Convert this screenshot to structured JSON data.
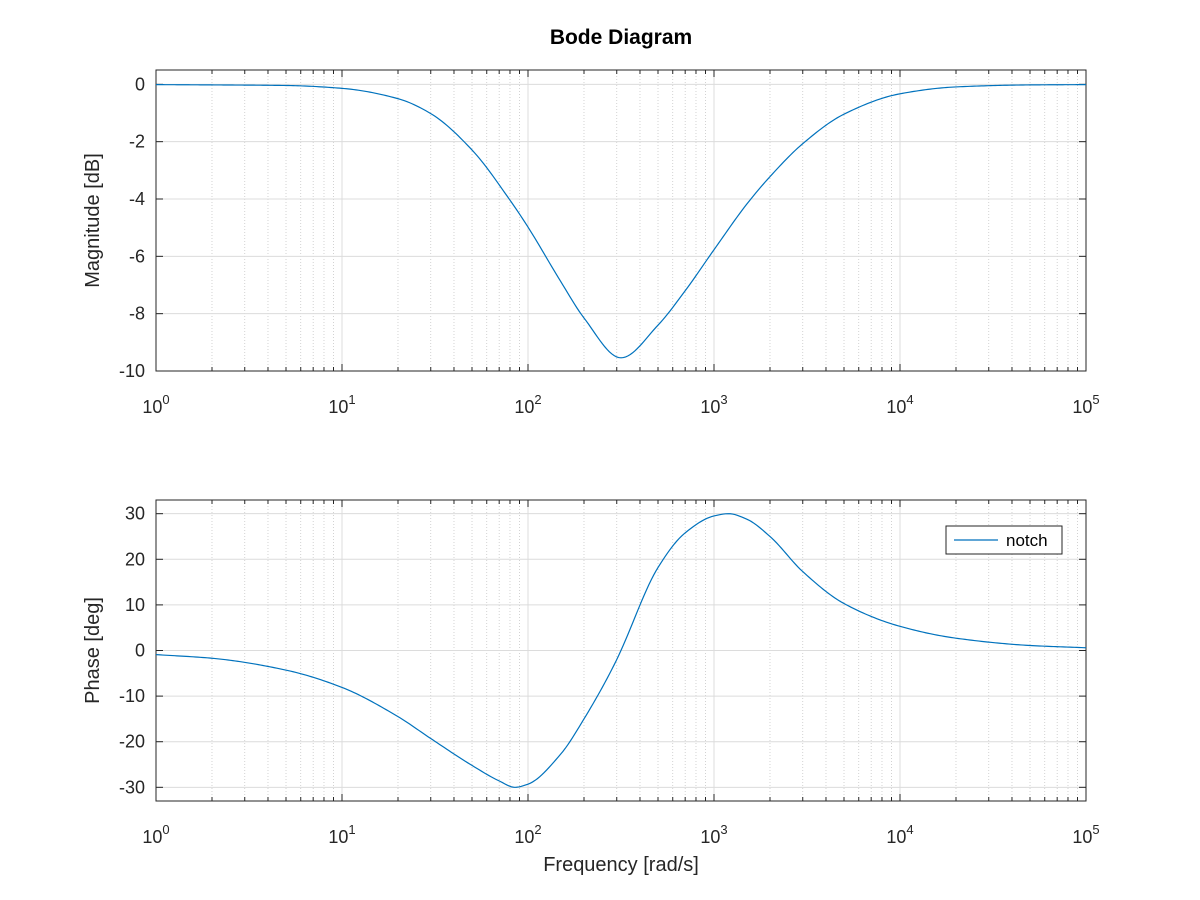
{
  "figure_title": "Bode Diagram",
  "colors": {
    "line": "#0072BD",
    "axes": "#262626"
  },
  "chart_data": [
    {
      "type": "line",
      "xscale": "log",
      "xlim": [
        1,
        100000
      ],
      "ylim": [
        -10,
        0.5
      ],
      "yticks": [
        0,
        -2,
        -4,
        -6,
        -8,
        -10
      ],
      "ylabel": "Magnitude [dB]",
      "xlabel": "",
      "xtick_exponents": [
        "0",
        "1",
        "2",
        "3",
        "4",
        "5"
      ],
      "grid": true,
      "series": [
        {
          "x": [
            1,
            2,
            5,
            10,
            20,
            30,
            50,
            80,
            100,
            150,
            200,
            316,
            500,
            700,
            1000,
            1500,
            2000,
            3000,
            5000,
            10000,
            20000,
            50000,
            100000
          ],
          "y": [
            -0.01,
            -0.02,
            -0.04,
            -0.14,
            -0.5,
            -1.02,
            -2.29,
            -4.04,
            -4.98,
            -6.88,
            -8.15,
            -9.54,
            -8.4,
            -7.2,
            -5.77,
            -4.18,
            -3.22,
            -2.07,
            -1.04,
            -0.33,
            -0.09,
            -0.02,
            -0.01
          ]
        }
      ]
    },
    {
      "type": "line",
      "xscale": "log",
      "xlim": [
        1,
        100000
      ],
      "ylim": [
        -33,
        33
      ],
      "yticks": [
        30,
        20,
        10,
        0,
        -10,
        -20,
        -30
      ],
      "ylabel": "Phase [deg]",
      "xlabel": "Frequency [rad/s]",
      "xtick_exponents": [
        "0",
        "1",
        "2",
        "3",
        "4",
        "5"
      ],
      "grid": true,
      "legend_position": "top-right",
      "series": [
        {
          "name": "notch",
          "x": [
            1,
            2,
            5,
            10,
            20,
            30,
            50,
            70,
            85,
            100,
            150,
            200,
            300,
            316,
            500,
            700,
            1000,
            1200,
            1500,
            2000,
            3000,
            5000,
            10000,
            20000,
            50000,
            100000
          ],
          "y": [
            -0.9,
            -1.7,
            -4.3,
            -8.1,
            -14.5,
            -19.3,
            -25.2,
            -28.6,
            -30.0,
            -29.3,
            -22.7,
            -15.0,
            -2.0,
            0.0,
            18.2,
            25.8,
            29.5,
            30.0,
            28.8,
            25.0,
            17.3,
            10.3,
            5.3,
            2.7,
            1.1,
            0.6
          ]
        }
      ]
    }
  ]
}
